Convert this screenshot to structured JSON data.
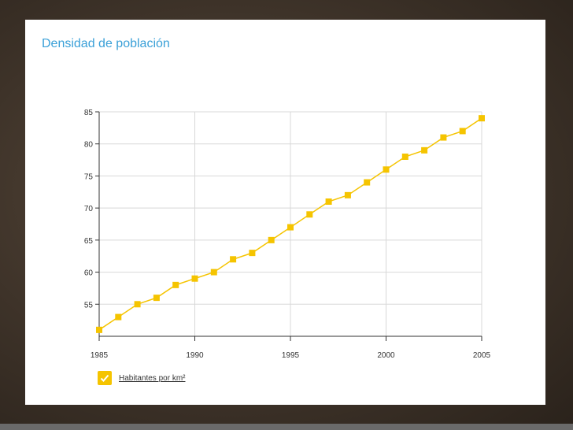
{
  "slide": {
    "title": "Densidad de población",
    "accent_color": "#3aa0d8"
  },
  "legend": {
    "label": "Habitantes por km²",
    "icon": "checkmark-icon",
    "checked": true,
    "color": "#f5c400"
  },
  "chart_data": {
    "type": "line",
    "title": "Densidad de población",
    "xlabel": "",
    "ylabel": "",
    "x": [
      1985,
      1986,
      1987,
      1988,
      1989,
      1990,
      1991,
      1992,
      1993,
      1994,
      1995,
      1996,
      1997,
      1998,
      1999,
      2000,
      2001,
      2002,
      2003,
      2004,
      2005
    ],
    "series": [
      {
        "name": "Habitantes por km²",
        "color": "#f5c400",
        "values": [
          51,
          53,
          55,
          56,
          58,
          59,
          60,
          62,
          63,
          65,
          67,
          69,
          71,
          72,
          74,
          76,
          78,
          79,
          81,
          82,
          84
        ]
      }
    ],
    "xlim": [
      1985,
      2005
    ],
    "ylim": [
      50,
      85
    ],
    "x_ticks": [
      "1985",
      "1990",
      "1995",
      "2000",
      "2005"
    ],
    "y_ticks": [
      "55",
      "60",
      "65",
      "70",
      "75",
      "80",
      "85"
    ],
    "grid": true,
    "legend_position": "bottom-left"
  }
}
